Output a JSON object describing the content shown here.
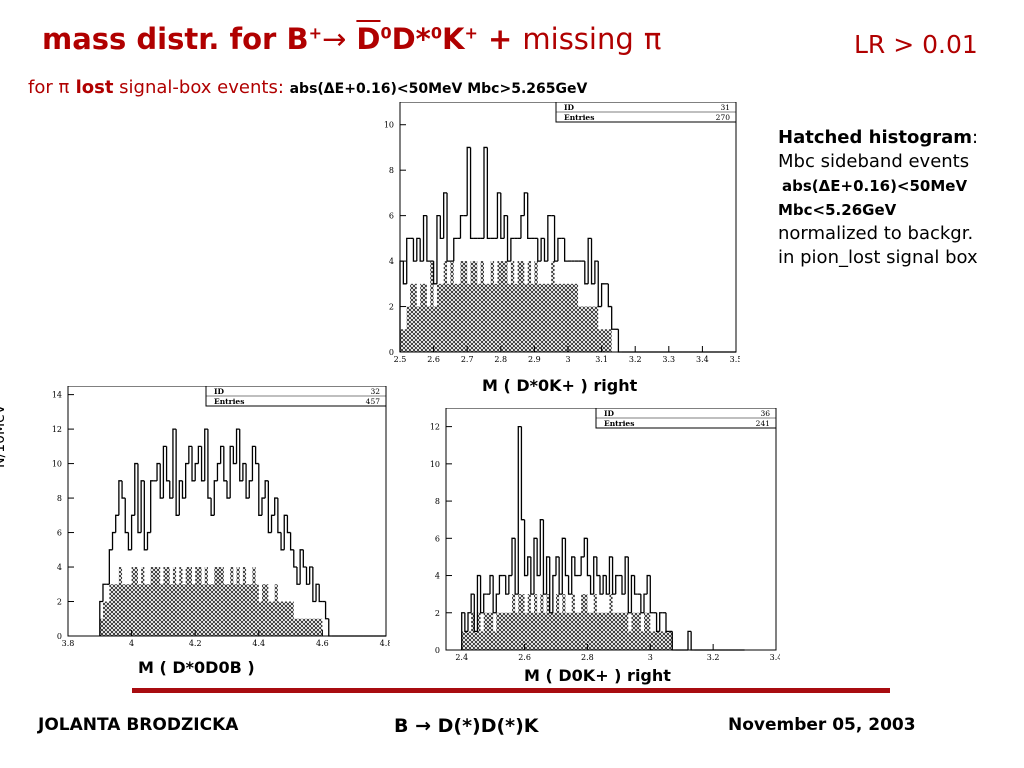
{
  "header": {
    "title_prefix": "mass distr. for B",
    "title_b_charge": "+",
    "title_arrow": "→",
    "title_d0": "D",
    "title_d0_sup": "0",
    "title_dstar": "D*",
    "title_dstar_sup": "0",
    "title_k": "K",
    "title_k_sup": "+",
    "title_plus": " + ",
    "title_missing": "missing",
    "title_pi": "π",
    "lr_cut": "LR > 0.01"
  },
  "subtitle": {
    "for": "for ",
    "pi": "π",
    "lost": " lost",
    "signal_box": " signal-box events: ",
    "cut": "abs(ΔE+0.16)<50MeV Mbc>5.265GeV"
  },
  "note": {
    "heading": "Hatched histogram",
    "colon": ":",
    "line1": "Mbc sideband events",
    "line2": "abs(ΔE+0.16)<50MeV",
    "line3": "Mbc<5.26GeV",
    "line4": "normalized to backgr.",
    "line5": "in pion_lost signal box"
  },
  "y_axis_label": "N/10MeV",
  "footer": {
    "author": "JOLANTA  BRODZICKA",
    "topic": "B → D(*)D(*)K",
    "date": "November 05, 2003"
  },
  "chart_data": [
    {
      "type": "bar",
      "xlabel": "M ( D*0K+ ) right",
      "id_label": "ID",
      "id_value": "31",
      "entries_label": "Entries",
      "entries_value": "270",
      "xlim": [
        2.5,
        3.5
      ],
      "ylim": [
        0,
        11
      ],
      "xticks": [
        "2.5",
        "2.6",
        "2.7",
        "2.8",
        "2.9",
        "3",
        "3.1",
        "3.2",
        "3.3",
        "3.4",
        "3.5"
      ],
      "yticks": [
        "0",
        "2",
        "4",
        "6",
        "8",
        "10"
      ],
      "bin_start": 2.5,
      "bin_width": 0.01,
      "values": [
        4,
        3,
        5,
        5,
        4,
        5,
        4,
        6,
        4,
        4,
        3,
        6,
        5,
        7,
        4,
        4,
        5,
        5,
        6,
        6,
        9,
        5,
        5,
        5,
        5,
        9,
        5,
        5,
        5,
        7,
        5,
        6,
        4,
        5,
        5,
        5,
        6,
        7,
        5,
        5,
        5,
        4,
        5,
        4,
        6,
        6,
        4,
        5,
        5,
        4,
        4,
        4,
        4,
        4,
        4,
        3,
        5,
        3,
        4,
        2,
        3,
        3,
        2,
        1,
        1,
        0,
        0,
        0,
        0,
        0,
        0,
        0,
        0,
        0,
        0,
        0,
        0,
        0,
        0,
        0,
        0,
        0,
        0,
        0,
        0,
        0,
        0,
        0,
        0,
        0,
        0,
        0,
        0,
        0,
        0,
        0,
        0,
        0,
        0,
        0
      ],
      "hatched": [
        1,
        1,
        2,
        3,
        3,
        2,
        3,
        3,
        2,
        4,
        2,
        3,
        3,
        4,
        3,
        4,
        3,
        3,
        4,
        4,
        3,
        4,
        4,
        3,
        4,
        3,
        3,
        4,
        3,
        4,
        4,
        4,
        3,
        4,
        3,
        4,
        4,
        3,
        4,
        3,
        4,
        3,
        3,
        3,
        3,
        4,
        3,
        3,
        3,
        3,
        3,
        3,
        3,
        2,
        2,
        2,
        2,
        2,
        2,
        1,
        1,
        1,
        1,
        0,
        0,
        0,
        0,
        0,
        0,
        0,
        0,
        0,
        0,
        0,
        0,
        0,
        0,
        0,
        0,
        0,
        0,
        0,
        0,
        0,
        0,
        0,
        0,
        0,
        0,
        0,
        0,
        0,
        0,
        0,
        0,
        0,
        0,
        0,
        0,
        0
      ]
    },
    {
      "type": "bar",
      "xlabel": "M ( D*0D0B )",
      "id_label": "ID",
      "id_value": "32",
      "entries_label": "Entries",
      "entries_value": "457",
      "xlim": [
        3.8,
        4.8
      ],
      "ylim": [
        0,
        14.5
      ],
      "xticks": [
        "3.8",
        "4",
        "4.2",
        "4.4",
        "4.6",
        "4.8"
      ],
      "yticks": [
        "0",
        "2",
        "4",
        "6",
        "8",
        "10",
        "12",
        "14"
      ],
      "bin_start": 3.9,
      "bin_width": 0.01,
      "values": [
        2,
        3,
        3,
        5,
        6,
        7,
        9,
        8,
        6,
        5,
        7,
        10,
        6,
        9,
        5,
        6,
        9,
        9,
        10,
        8,
        11,
        9,
        8,
        12,
        7,
        9,
        8,
        10,
        11,
        9,
        10,
        11,
        9,
        12,
        8,
        7,
        9,
        10,
        11,
        9,
        8,
        11,
        10,
        12,
        9,
        10,
        8,
        9,
        11,
        10,
        7,
        8,
        9,
        6,
        7,
        8,
        6,
        5,
        7,
        6,
        5,
        4,
        3,
        5,
        4,
        3,
        4,
        2,
        3,
        2,
        2,
        1,
        0,
        0,
        0,
        0,
        0,
        0,
        0,
        0,
        0,
        0,
        0,
        0,
        0,
        0,
        0,
        0,
        0,
        0
      ],
      "hatched": [
        1,
        2,
        2,
        3,
        3,
        3,
        4,
        3,
        3,
        3,
        4,
        4,
        3,
        4,
        3,
        3,
        4,
        4,
        4,
        3,
        4,
        4,
        3,
        4,
        3,
        4,
        3,
        4,
        4,
        3,
        4,
        4,
        3,
        4,
        3,
        3,
        4,
        4,
        4,
        3,
        3,
        4,
        3,
        4,
        3,
        4,
        3,
        3,
        4,
        3,
        2,
        3,
        3,
        2,
        2,
        3,
        2,
        2,
        2,
        2,
        2,
        1,
        1,
        1,
        1,
        1,
        1,
        1,
        1,
        1,
        0,
        0,
        0,
        0,
        0,
        0,
        0,
        0,
        0,
        0,
        0,
        0,
        0,
        0,
        0,
        0,
        0,
        0,
        0,
        0
      ]
    },
    {
      "type": "bar",
      "xlabel": "M ( D0K+ ) right",
      "id_label": "ID",
      "id_value": "36",
      "entries_label": "Entries",
      "entries_value": "241",
      "xlim": [
        2.35,
        3.4
      ],
      "ylim": [
        0,
        13
      ],
      "xticks": [
        "2.4",
        "2.6",
        "2.8",
        "3",
        "3.2",
        "3.4"
      ],
      "yticks": [
        "0",
        "2",
        "4",
        "6",
        "8",
        "10",
        "12"
      ],
      "bin_start": 2.4,
      "bin_width": 0.01,
      "values": [
        2,
        1,
        2,
        3,
        1,
        4,
        2,
        3,
        3,
        4,
        2,
        3,
        4,
        4,
        3,
        4,
        6,
        3,
        12,
        7,
        4,
        5,
        3,
        6,
        4,
        7,
        3,
        5,
        2,
        4,
        5,
        3,
        6,
        4,
        3,
        5,
        4,
        4,
        5,
        6,
        4,
        3,
        5,
        4,
        3,
        4,
        3,
        5,
        3,
        4,
        4,
        3,
        5,
        2,
        4,
        3,
        3,
        2,
        3,
        4,
        2,
        2,
        1,
        2,
        2,
        1,
        1,
        0,
        0,
        0,
        0,
        0,
        1,
        0,
        0,
        0,
        0,
        0,
        0,
        0,
        0,
        0,
        0,
        0,
        0,
        0,
        0,
        0,
        0,
        0
      ],
      "hatched": [
        1,
        1,
        1,
        2,
        1,
        2,
        1,
        2,
        2,
        2,
        1,
        2,
        2,
        2,
        2,
        2,
        3,
        2,
        3,
        3,
        2,
        3,
        2,
        3,
        2,
        3,
        2,
        3,
        2,
        2,
        3,
        2,
        3,
        2,
        2,
        3,
        2,
        2,
        3,
        3,
        2,
        2,
        3,
        2,
        2,
        2,
        2,
        3,
        2,
        2,
        2,
        2,
        2,
        1,
        2,
        2,
        2,
        1,
        2,
        2,
        1,
        1,
        1,
        1,
        1,
        1,
        1,
        0,
        0,
        0,
        0,
        0,
        0,
        0,
        0,
        0,
        0,
        0,
        0,
        0,
        0,
        0,
        0,
        0,
        0,
        0,
        0,
        0,
        0,
        0
      ]
    }
  ]
}
